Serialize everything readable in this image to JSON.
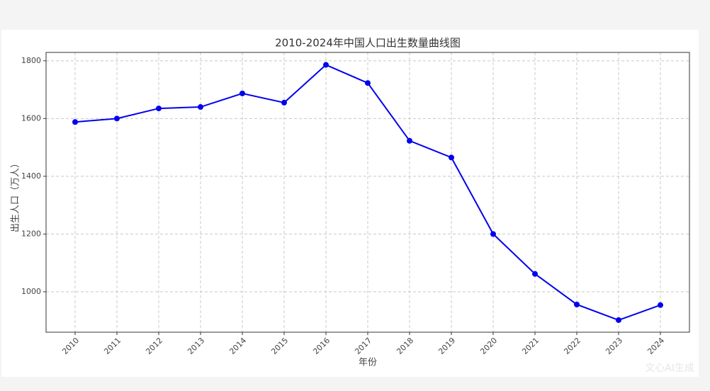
{
  "chart_data": {
    "type": "line",
    "title": "2010-2024年中国人口出生数量曲线图",
    "x_label": "年份",
    "y_label": "出生人口（万人）",
    "categories": [
      "2010",
      "2011",
      "2012",
      "2013",
      "2014",
      "2015",
      "2016",
      "2017",
      "2018",
      "2019",
      "2020",
      "2021",
      "2022",
      "2023",
      "2024"
    ],
    "series": [
      {
        "name": "出生人口",
        "color": "#0000ee",
        "values": [
          1588,
          1600,
          1635,
          1640,
          1687,
          1655,
          1786,
          1723,
          1523,
          1465,
          1200,
          1062,
          956,
          902,
          954
        ]
      }
    ],
    "ylim": [
      860,
      1829
    ],
    "yticks": [
      1000,
      1200,
      1400,
      1600,
      1800
    ],
    "grid": true,
    "watermark": "文心AI生成"
  }
}
